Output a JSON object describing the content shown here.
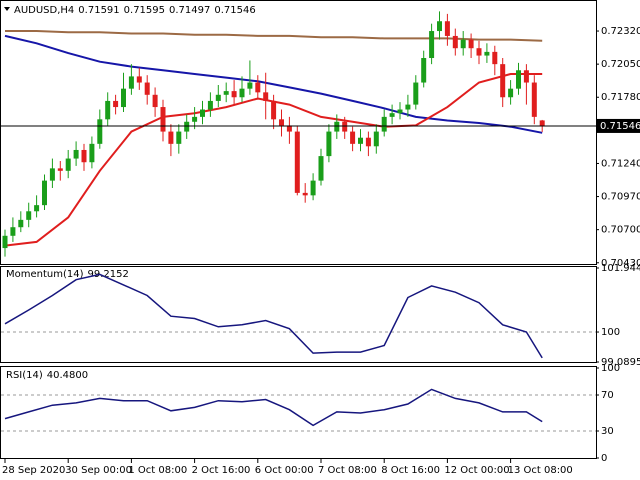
{
  "chart_data": [
    {
      "type": "candlestick",
      "title": "AUDUSD,H4",
      "categories": [
        "28 Sep 2020",
        null,
        null,
        null,
        null,
        null,
        null,
        null,
        "30 Sep 00:00",
        null,
        null,
        null,
        null,
        null,
        null,
        null,
        "1 Oct 08:00",
        null,
        null,
        null,
        null,
        null,
        null,
        null,
        "2 Oct 16:00",
        null,
        null,
        null,
        null,
        null,
        null,
        null,
        "6 Oct 00:00",
        null,
        null,
        null,
        null,
        null,
        null,
        null,
        "7 Oct 08:00",
        null,
        null,
        null,
        null,
        null,
        null,
        null,
        "8 Oct 16:00",
        null,
        null,
        null,
        null,
        null,
        null,
        null,
        "12 Oct 00:00",
        null,
        null,
        null,
        null,
        null,
        null,
        null,
        "13 Oct 08:00",
        null,
        null,
        null,
        null
      ],
      "open": [
        0.7055,
        0.7065,
        0.7072,
        0.7078,
        0.7085,
        0.709,
        0.711,
        0.712,
        0.7118,
        0.7128,
        0.7135,
        0.7125,
        0.714,
        0.716,
        0.7175,
        0.717,
        0.7185,
        0.7195,
        0.719,
        0.718,
        0.717,
        0.715,
        0.714,
        0.715,
        0.7158,
        0.7162,
        0.7168,
        0.7175,
        0.718,
        0.7183,
        0.7178,
        0.7185,
        0.719,
        0.7182,
        0.7175,
        0.716,
        0.7155,
        0.715,
        0.71,
        0.7098,
        0.711,
        0.713,
        0.715,
        0.7158,
        0.715,
        0.714,
        0.7145,
        0.7138,
        0.715,
        0.7162,
        0.7165,
        0.7168,
        0.7172,
        0.719,
        0.721,
        0.7232,
        0.724,
        0.7228,
        0.7218,
        0.7225,
        0.7218,
        0.7212,
        0.7215,
        0.7205,
        0.7178,
        0.7185,
        0.72,
        0.719,
        0.71591
      ],
      "high": [
        0.707,
        0.708,
        0.7085,
        0.7092,
        0.7098,
        0.7115,
        0.7128,
        0.7126,
        0.7135,
        0.7142,
        0.714,
        0.7146,
        0.7168,
        0.7182,
        0.718,
        0.7198,
        0.7205,
        0.7202,
        0.7196,
        0.7186,
        0.7176,
        0.7156,
        0.7156,
        0.7164,
        0.717,
        0.7175,
        0.7182,
        0.7188,
        0.719,
        0.7192,
        0.7195,
        0.7208,
        0.7196,
        0.7198,
        0.718,
        0.7168,
        0.7162,
        0.7155,
        0.7108,
        0.7116,
        0.7136,
        0.7156,
        0.7164,
        0.7162,
        0.7154,
        0.7152,
        0.715,
        0.7156,
        0.7168,
        0.7172,
        0.7174,
        0.718,
        0.7196,
        0.7216,
        0.7238,
        0.7248,
        0.7246,
        0.7234,
        0.7232,
        0.723,
        0.7224,
        0.7222,
        0.722,
        0.721,
        0.7192,
        0.7206,
        0.7205,
        0.7196,
        0.71595
      ],
      "low": [
        0.7048,
        0.706,
        0.7068,
        0.7072,
        0.708,
        0.7086,
        0.7104,
        0.711,
        0.7112,
        0.7122,
        0.7118,
        0.712,
        0.7136,
        0.7155,
        0.7164,
        0.7166,
        0.718,
        0.7184,
        0.7172,
        0.7162,
        0.7142,
        0.713,
        0.7132,
        0.7144,
        0.7152,
        0.7156,
        0.7162,
        0.717,
        0.7174,
        0.7172,
        0.7174,
        0.718,
        0.7176,
        0.716,
        0.7152,
        0.7146,
        0.714,
        0.7098,
        0.7092,
        0.7094,
        0.7106,
        0.7125,
        0.7144,
        0.7144,
        0.7134,
        0.7134,
        0.713,
        0.7132,
        0.7146,
        0.7156,
        0.716,
        0.7162,
        0.7168,
        0.7186,
        0.7205,
        0.7225,
        0.722,
        0.7212,
        0.7212,
        0.721,
        0.7205,
        0.7206,
        0.7196,
        0.717,
        0.7172,
        0.718,
        0.7172,
        0.7156,
        0.71497
      ],
      "close": [
        0.7065,
        0.7072,
        0.7078,
        0.7085,
        0.709,
        0.711,
        0.712,
        0.7118,
        0.7128,
        0.7135,
        0.7125,
        0.714,
        0.716,
        0.7175,
        0.717,
        0.7185,
        0.7195,
        0.719,
        0.718,
        0.717,
        0.715,
        0.714,
        0.715,
        0.7158,
        0.7162,
        0.7168,
        0.7175,
        0.718,
        0.7183,
        0.7178,
        0.7185,
        0.719,
        0.7182,
        0.7175,
        0.716,
        0.7155,
        0.715,
        0.71,
        0.7098,
        0.711,
        0.713,
        0.715,
        0.7158,
        0.715,
        0.714,
        0.7145,
        0.7138,
        0.715,
        0.7162,
        0.7165,
        0.7168,
        0.7172,
        0.719,
        0.721,
        0.7232,
        0.724,
        0.7228,
        0.7218,
        0.7225,
        0.7218,
        0.7212,
        0.7215,
        0.7205,
        0.7178,
        0.7185,
        0.72,
        0.719,
        0.7162,
        0.71546
      ],
      "up_color": "#1a9e1a",
      "down_color": "#e01e1e",
      "series": [
        {
          "color": "#9c6a45",
          "x": [
            0,
            4,
            8,
            12,
            16,
            20,
            24,
            28,
            32,
            36,
            40,
            44,
            48,
            52,
            56,
            60,
            64,
            68
          ],
          "values": [
            0.7232,
            0.7232,
            0.7231,
            0.7231,
            0.723,
            0.723,
            0.7229,
            0.7229,
            0.7228,
            0.7228,
            0.7227,
            0.7227,
            0.7226,
            0.7226,
            0.7226,
            0.7225,
            0.7225,
            0.7224
          ]
        },
        {
          "color": "#1616a8",
          "x": [
            0,
            4,
            8,
            12,
            16,
            20,
            24,
            28,
            32,
            36,
            40,
            44,
            48,
            52,
            56,
            60,
            64,
            68
          ],
          "values": [
            0.7228,
            0.7222,
            0.7214,
            0.7207,
            0.7203,
            0.72,
            0.7197,
            0.7194,
            0.7191,
            0.7186,
            0.7181,
            0.7175,
            0.7169,
            0.7162,
            0.7159,
            0.7157,
            0.7154,
            0.7149
          ]
        },
        {
          "color": "#e01e1e",
          "x": [
            0,
            4,
            8,
            12,
            16,
            20,
            24,
            28,
            32,
            36,
            40,
            44,
            48,
            52,
            56,
            60,
            64,
            68
          ],
          "values": [
            0.7057,
            0.706,
            0.708,
            0.7118,
            0.715,
            0.7162,
            0.7165,
            0.717,
            0.7177,
            0.7172,
            0.7162,
            0.7158,
            0.7154,
            0.7155,
            0.717,
            0.719,
            0.7197,
            0.7197
          ]
        }
      ],
      "ylim": [
        0.7042,
        0.72565
      ],
      "yticks": [
        {
          "value": 0.7043,
          "label": "0.70430"
        },
        {
          "value": 0.707,
          "label": "0.70700"
        },
        {
          "value": 0.7097,
          "label": "0.70970"
        },
        {
          "value": 0.7124,
          "label": "0.71240"
        },
        {
          "value": 0.7178,
          "label": "0.71780"
        },
        {
          "value": 0.7205,
          "label": "0.72050"
        },
        {
          "value": 0.7232,
          "label": "0.72320"
        }
      ]
    },
    {
      "type": "line",
      "title": "Momentum(14)",
      "color": "#16167e",
      "x": [
        0,
        3,
        6,
        9,
        12,
        15,
        18,
        21,
        24,
        27,
        30,
        33,
        36,
        39,
        42,
        45,
        48,
        51,
        54,
        57,
        60,
        63,
        66,
        68
      ],
      "values": [
        100.25,
        100.67,
        101.11,
        101.59,
        101.75,
        101.43,
        101.11,
        100.48,
        100.41,
        100.16,
        100.22,
        100.35,
        100.1,
        99.36,
        99.39,
        99.39,
        99.59,
        101.05,
        101.4,
        101.21,
        100.89,
        100.22,
        100.0,
        99.2152
      ],
      "ylim": [
        99.0895,
        101.9445
      ],
      "yticks": [
        99.0895,
        100,
        101.9445
      ],
      "levels": [
        100
      ]
    },
    {
      "type": "line",
      "title": "RSI(14)",
      "color": "#16167e",
      "x": [
        0,
        3,
        6,
        9,
        12,
        15,
        18,
        21,
        24,
        27,
        30,
        33,
        36,
        39,
        42,
        45,
        48,
        51,
        54,
        57,
        60,
        63,
        66,
        68
      ],
      "values": [
        43.8,
        51.2,
        58.7,
        61.2,
        66.2,
        63.7,
        63.7,
        52.5,
        56.2,
        63.7,
        62.5,
        65,
        53.7,
        36.2,
        51.2,
        50,
        53.7,
        60,
        76.2,
        66.2,
        61.2,
        51.2,
        51.2,
        40.48
      ],
      "value_labels": [
        null,
        null,
        null,
        null,
        null,
        null,
        null,
        null,
        null,
        null,
        null,
        null,
        null,
        null,
        null,
        null,
        null,
        null,
        null,
        null,
        null,
        null,
        null,
        "40.4800"
      ],
      "ylim": [
        0,
        100
      ],
      "yticks": [
        0,
        30,
        70,
        100
      ],
      "levels": [
        30,
        70
      ]
    }
  ]
}
